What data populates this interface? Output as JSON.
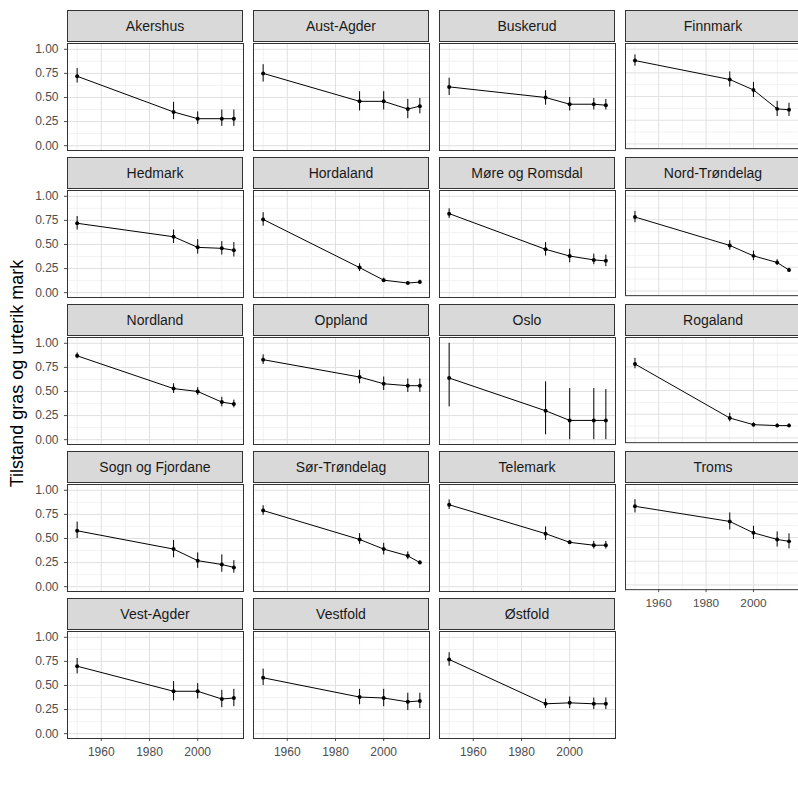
{
  "chart_data": {
    "type": "line",
    "y_label": "Tilstand gras og urterik mark",
    "color": "#000000",
    "marker": "circle",
    "grid": true,
    "x": [
      1950,
      1990,
      2000,
      2010,
      2015
    ],
    "xlim": [
      1946,
      2019
    ],
    "xticks": [
      1960,
      1980,
      2000
    ],
    "ylim": [
      -0.05,
      1.06
    ],
    "yticks": [
      {
        "value": 0,
        "label": "0.00"
      },
      {
        "value": 0.25,
        "label": "0.25"
      },
      {
        "value": 0.5,
        "label": "0.50"
      },
      {
        "value": 0.75,
        "label": "0.75"
      },
      {
        "value": 1,
        "label": "1.00"
      }
    ],
    "panels": [
      {
        "name": "Akershus",
        "values": [
          0.72,
          0.35,
          0.28,
          0.28,
          0.28
        ],
        "lower": [
          0.65,
          0.27,
          0.22,
          0.2,
          0.2
        ],
        "upper": [
          0.8,
          0.45,
          0.35,
          0.37,
          0.37
        ]
      },
      {
        "name": "Aust-Agder",
        "values": [
          0.75,
          0.46,
          0.46,
          0.38,
          0.41
        ],
        "lower": [
          0.66,
          0.36,
          0.37,
          0.28,
          0.33
        ],
        "upper": [
          0.84,
          0.56,
          0.56,
          0.48,
          0.49
        ]
      },
      {
        "name": "Buskerud",
        "values": [
          0.61,
          0.5,
          0.43,
          0.43,
          0.42
        ],
        "lower": [
          0.52,
          0.42,
          0.36,
          0.37,
          0.37
        ],
        "upper": [
          0.7,
          0.57,
          0.5,
          0.49,
          0.48
        ]
      },
      {
        "name": "Finnmark",
        "values": [
          0.88,
          0.68,
          0.57,
          0.37,
          0.36
        ],
        "lower": [
          0.82,
          0.6,
          0.49,
          0.29,
          0.29
        ],
        "upper": [
          0.94,
          0.76,
          0.65,
          0.45,
          0.43
        ]
      },
      {
        "name": "Hedmark",
        "values": [
          0.72,
          0.58,
          0.47,
          0.46,
          0.44
        ],
        "lower": [
          0.65,
          0.51,
          0.4,
          0.39,
          0.37
        ],
        "upper": [
          0.79,
          0.65,
          0.55,
          0.53,
          0.52
        ]
      },
      {
        "name": "Hordaland",
        "values": [
          0.76,
          0.26,
          0.13,
          0.1,
          0.11
        ],
        "lower": [
          0.69,
          0.22,
          0.11,
          0.09,
          0.09
        ],
        "upper": [
          0.83,
          0.3,
          0.15,
          0.11,
          0.13
        ]
      },
      {
        "name": "Møre og Romsdal",
        "values": [
          0.82,
          0.45,
          0.38,
          0.34,
          0.33
        ],
        "lower": [
          0.77,
          0.38,
          0.31,
          0.29,
          0.27
        ],
        "upper": [
          0.87,
          0.52,
          0.45,
          0.4,
          0.39
        ]
      },
      {
        "name": "Nord-Trøndelag",
        "values": [
          0.78,
          0.48,
          0.37,
          0.3,
          0.22
        ],
        "lower": [
          0.72,
          0.43,
          0.32,
          0.27,
          0.2
        ],
        "upper": [
          0.84,
          0.53,
          0.42,
          0.33,
          0.24
        ]
      },
      {
        "name": "Nordland",
        "values": [
          0.87,
          0.53,
          0.5,
          0.39,
          0.37
        ],
        "lower": [
          0.84,
          0.48,
          0.46,
          0.34,
          0.33
        ],
        "upper": [
          0.9,
          0.58,
          0.54,
          0.44,
          0.41
        ]
      },
      {
        "name": "Oppland",
        "values": [
          0.83,
          0.65,
          0.58,
          0.56,
          0.56
        ],
        "lower": [
          0.78,
          0.58,
          0.51,
          0.49,
          0.49
        ],
        "upper": [
          0.88,
          0.72,
          0.65,
          0.63,
          0.63
        ]
      },
      {
        "name": "Oslo",
        "values": [
          0.64,
          0.3,
          0.2,
          0.2,
          0.2
        ],
        "lower": [
          0.34,
          0.05,
          0.0,
          0.0,
          0.0
        ],
        "upper": [
          1.0,
          0.6,
          0.53,
          0.53,
          0.52
        ]
      },
      {
        "name": "Rogaland",
        "values": [
          0.78,
          0.21,
          0.14,
          0.13,
          0.13
        ],
        "lower": [
          0.73,
          0.17,
          0.12,
          0.11,
          0.11
        ],
        "upper": [
          0.84,
          0.26,
          0.16,
          0.15,
          0.15
        ]
      },
      {
        "name": "Sogn og Fjordane",
        "values": [
          0.58,
          0.39,
          0.27,
          0.23,
          0.2
        ],
        "lower": [
          0.5,
          0.3,
          0.19,
          0.15,
          0.14
        ],
        "upper": [
          0.67,
          0.48,
          0.35,
          0.33,
          0.27
        ]
      },
      {
        "name": "Sør-Trøndelag",
        "values": [
          0.79,
          0.49,
          0.39,
          0.32,
          0.25
        ],
        "lower": [
          0.74,
          0.44,
          0.33,
          0.28,
          0.23
        ],
        "upper": [
          0.84,
          0.55,
          0.45,
          0.36,
          0.27
        ]
      },
      {
        "name": "Telemark",
        "values": [
          0.85,
          0.55,
          0.46,
          0.43,
          0.43
        ],
        "lower": [
          0.8,
          0.48,
          0.44,
          0.39,
          0.39
        ],
        "upper": [
          0.9,
          0.62,
          0.48,
          0.47,
          0.47
        ]
      },
      {
        "name": "Troms",
        "values": [
          0.83,
          0.67,
          0.55,
          0.48,
          0.46
        ],
        "lower": [
          0.76,
          0.58,
          0.48,
          0.4,
          0.38
        ],
        "upper": [
          0.9,
          0.76,
          0.62,
          0.56,
          0.54
        ]
      },
      {
        "name": "Vest-Agder",
        "values": [
          0.7,
          0.44,
          0.44,
          0.36,
          0.37
        ],
        "lower": [
          0.62,
          0.34,
          0.36,
          0.27,
          0.28
        ],
        "upper": [
          0.78,
          0.54,
          0.52,
          0.45,
          0.46
        ]
      },
      {
        "name": "Vestfold",
        "values": [
          0.58,
          0.38,
          0.37,
          0.33,
          0.34
        ],
        "lower": [
          0.5,
          0.3,
          0.28,
          0.24,
          0.26
        ],
        "upper": [
          0.67,
          0.46,
          0.46,
          0.42,
          0.42
        ]
      },
      {
        "name": "Østfold",
        "values": [
          0.77,
          0.31,
          0.32,
          0.31,
          0.31
        ],
        "lower": [
          0.7,
          0.26,
          0.26,
          0.25,
          0.25
        ],
        "upper": [
          0.84,
          0.36,
          0.38,
          0.37,
          0.37
        ]
      }
    ]
  }
}
